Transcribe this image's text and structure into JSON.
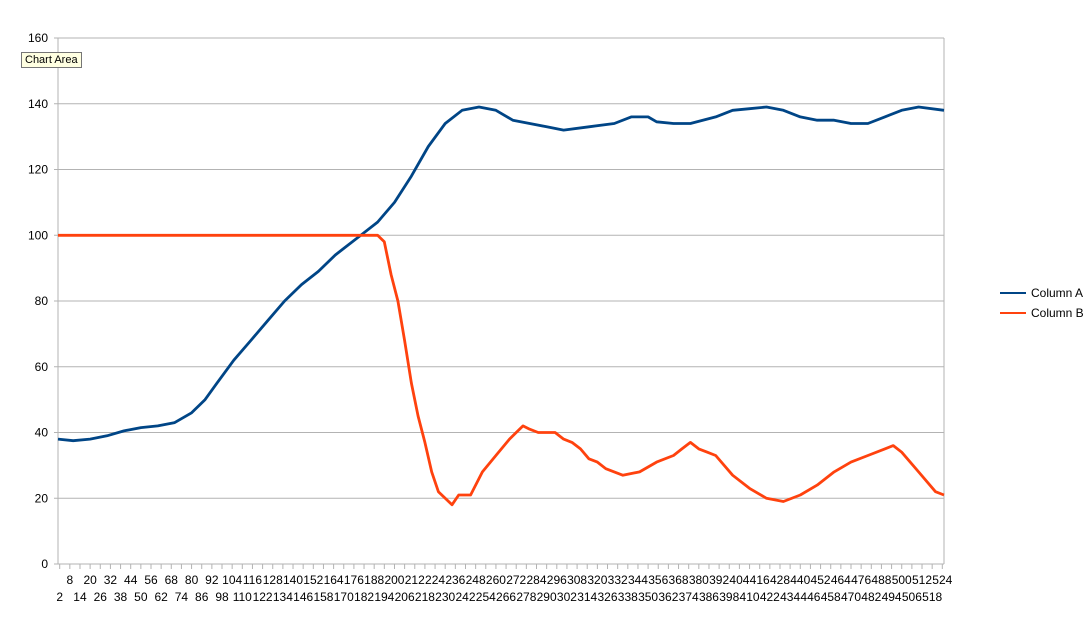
{
  "tooltip": "Chart Area",
  "colors": {
    "column_a": "#004586",
    "column_b": "#ff420e",
    "grid": "#b3b3b3",
    "axis": "#b3b3b3"
  },
  "chart_data": {
    "type": "line",
    "title": "",
    "xlabel": "",
    "ylabel": "",
    "ylim": [
      0,
      160
    ],
    "yticks": [
      0,
      20,
      40,
      60,
      80,
      100,
      120,
      140,
      160
    ],
    "xlim": [
      1,
      525
    ],
    "x_label_every": 6,
    "x_label_start": 2,
    "x_label_end": 524,
    "grid": "horizontal",
    "legend_position": "right",
    "series": [
      {
        "name": "Column A",
        "color": "#004586",
        "points": [
          [
            1,
            38
          ],
          [
            10,
            37.5
          ],
          [
            20,
            38
          ],
          [
            30,
            39
          ],
          [
            40,
            40.5
          ],
          [
            50,
            41.5
          ],
          [
            60,
            42
          ],
          [
            70,
            43
          ],
          [
            80,
            46
          ],
          [
            88,
            50
          ],
          [
            95,
            55
          ],
          [
            105,
            62
          ],
          [
            115,
            68
          ],
          [
            125,
            74
          ],
          [
            135,
            80
          ],
          [
            145,
            85
          ],
          [
            155,
            89
          ],
          [
            165,
            94
          ],
          [
            170,
            96
          ],
          [
            180,
            100
          ],
          [
            190,
            104
          ],
          [
            200,
            110
          ],
          [
            210,
            118
          ],
          [
            220,
            127
          ],
          [
            230,
            134
          ],
          [
            240,
            138
          ],
          [
            250,
            139
          ],
          [
            260,
            138
          ],
          [
            270,
            135
          ],
          [
            280,
            134
          ],
          [
            290,
            133
          ],
          [
            300,
            132
          ],
          [
            315,
            133
          ],
          [
            330,
            134
          ],
          [
            340,
            136
          ],
          [
            350,
            136
          ],
          [
            355,
            134.5
          ],
          [
            365,
            134
          ],
          [
            375,
            134
          ],
          [
            390,
            136
          ],
          [
            400,
            138
          ],
          [
            410,
            138.5
          ],
          [
            420,
            139
          ],
          [
            430,
            138
          ],
          [
            440,
            136
          ],
          [
            450,
            135
          ],
          [
            460,
            135
          ],
          [
            470,
            134
          ],
          [
            480,
            134
          ],
          [
            490,
            136
          ],
          [
            500,
            138
          ],
          [
            510,
            139
          ],
          [
            525,
            138
          ]
        ]
      },
      {
        "name": "Column B",
        "color": "#ff420e",
        "points": [
          [
            1,
            100
          ],
          [
            190,
            100
          ],
          [
            194,
            98
          ],
          [
            198,
            88
          ],
          [
            202,
            80
          ],
          [
            206,
            68
          ],
          [
            210,
            55
          ],
          [
            214,
            45
          ],
          [
            218,
            37
          ],
          [
            222,
            28
          ],
          [
            226,
            22
          ],
          [
            230,
            20
          ],
          [
            234,
            18
          ],
          [
            238,
            21
          ],
          [
            245,
            21
          ],
          [
            252,
            28
          ],
          [
            260,
            33
          ],
          [
            268,
            38
          ],
          [
            272,
            40
          ],
          [
            276,
            42
          ],
          [
            280,
            41
          ],
          [
            285,
            40
          ],
          [
            290,
            40
          ],
          [
            295,
            40
          ],
          [
            300,
            38
          ],
          [
            305,
            37
          ],
          [
            310,
            35
          ],
          [
            315,
            32
          ],
          [
            320,
            31
          ],
          [
            325,
            29
          ],
          [
            335,
            27
          ],
          [
            345,
            28
          ],
          [
            355,
            31
          ],
          [
            365,
            33
          ],
          [
            370,
            35
          ],
          [
            375,
            37
          ],
          [
            380,
            35
          ],
          [
            385,
            34
          ],
          [
            390,
            33
          ],
          [
            400,
            27
          ],
          [
            410,
            23
          ],
          [
            420,
            20
          ],
          [
            430,
            19
          ],
          [
            440,
            21
          ],
          [
            450,
            24
          ],
          [
            460,
            28
          ],
          [
            470,
            31
          ],
          [
            480,
            33
          ],
          [
            490,
            35
          ],
          [
            495,
            36
          ],
          [
            500,
            34
          ],
          [
            510,
            28
          ],
          [
            520,
            22
          ],
          [
            525,
            21
          ]
        ]
      }
    ]
  }
}
